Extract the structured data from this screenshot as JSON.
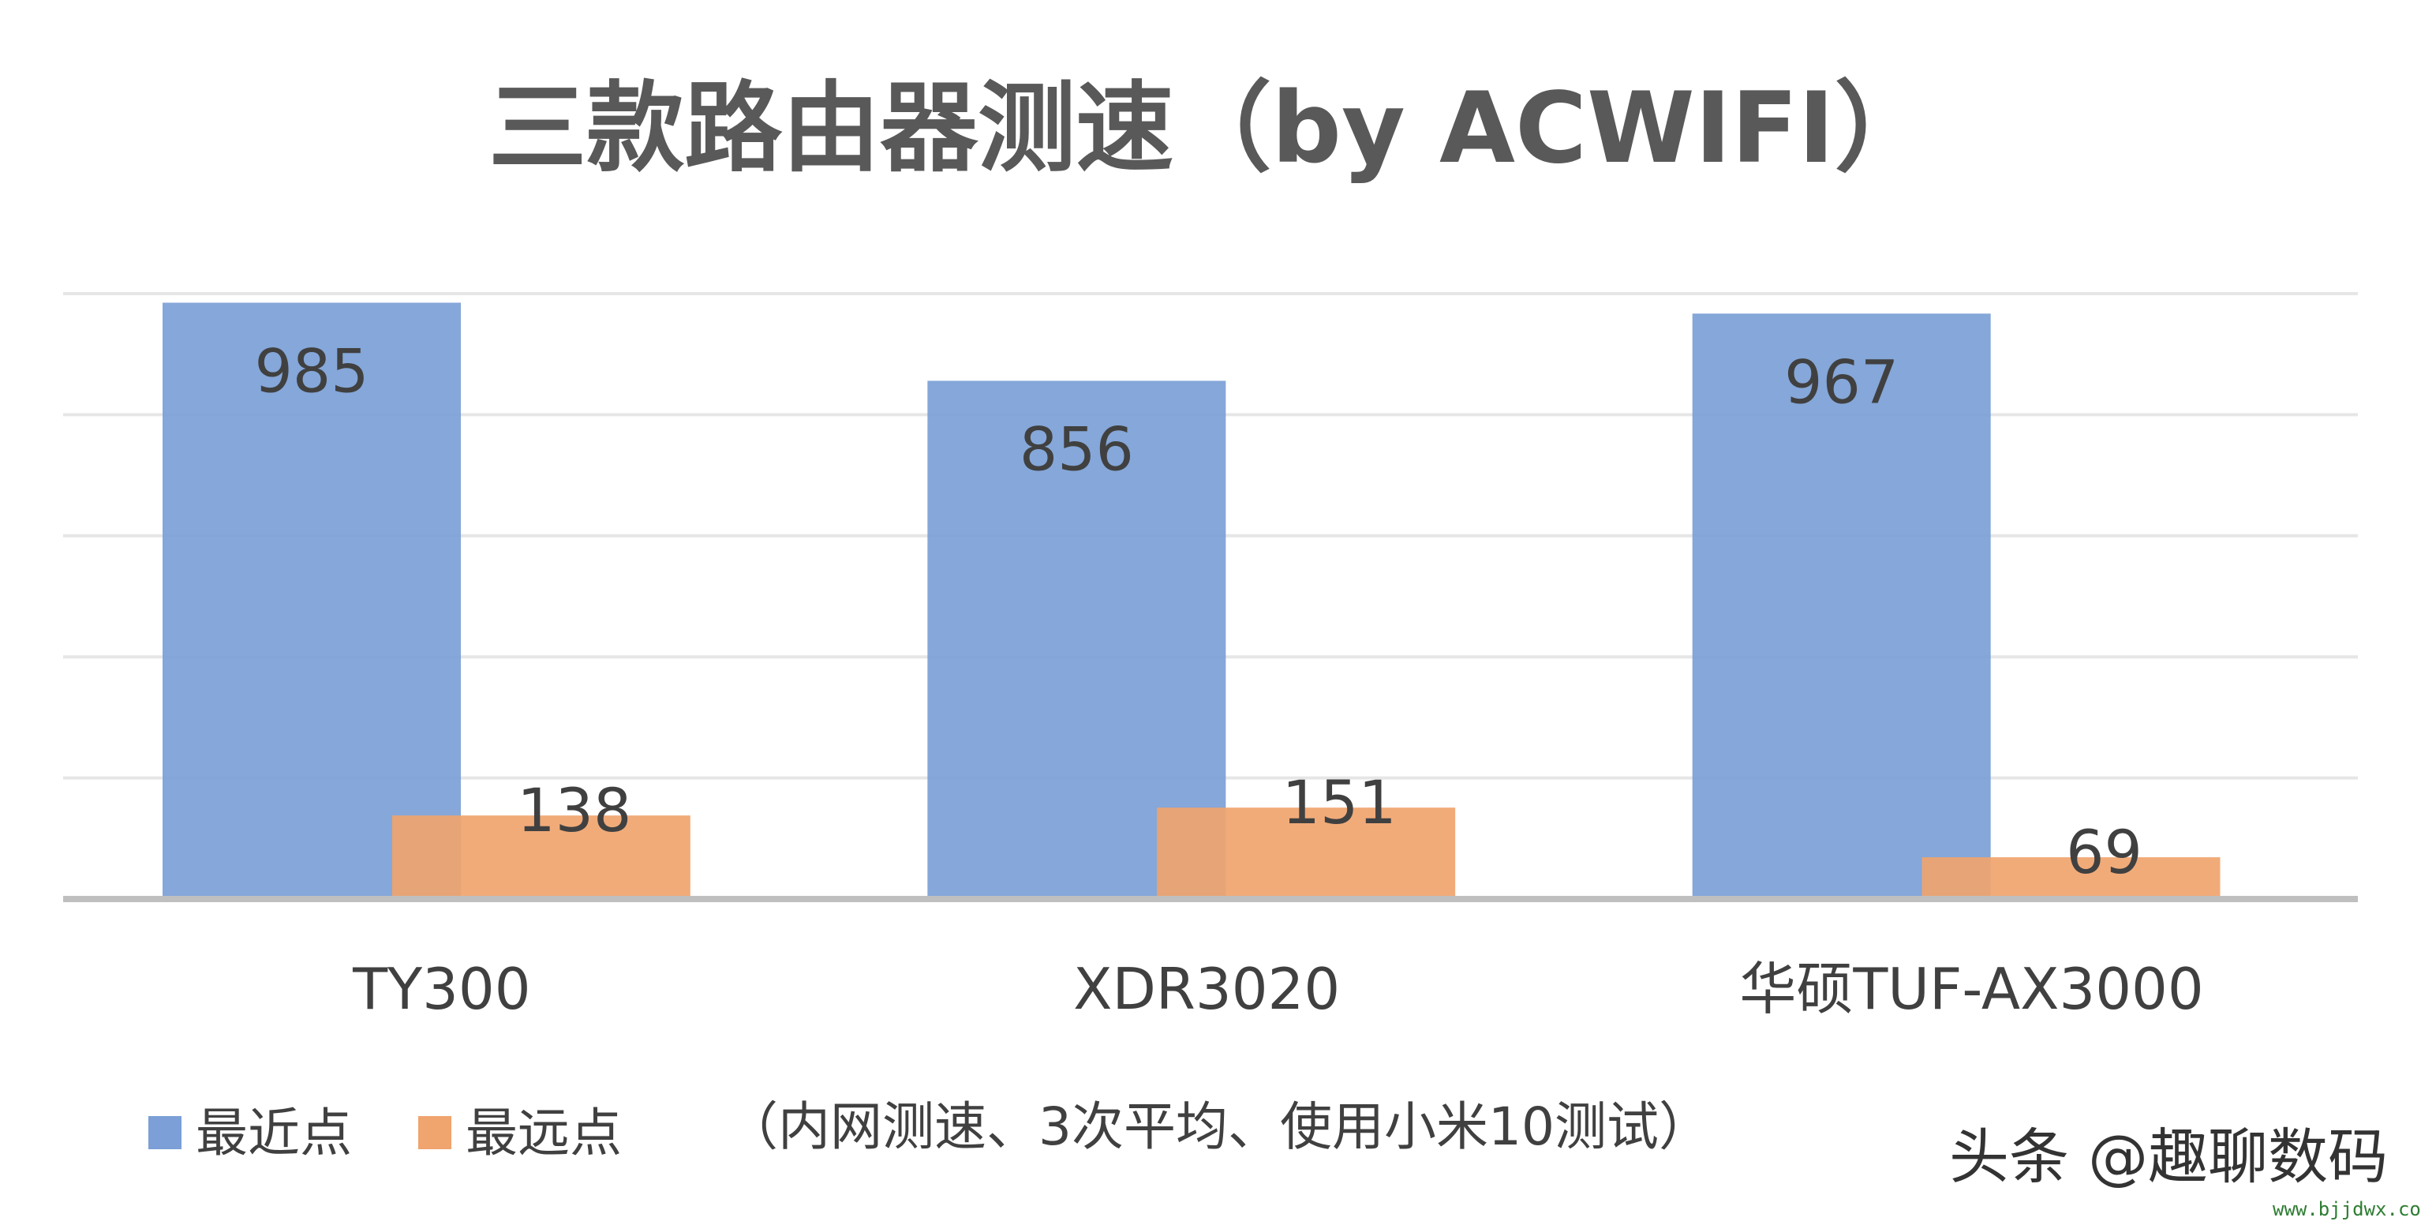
{
  "chart_data": {
    "type": "bar",
    "title": "三款路由器测速（by ACWIFI）",
    "categories": [
      "TY300",
      "XDR3020",
      "华硕TUF-AX3000"
    ],
    "series": [
      {
        "name": "最近点",
        "values": [
          985,
          856,
          967
        ],
        "color": "#7b9fd6"
      },
      {
        "name": "最远点",
        "values": [
          138,
          151,
          69
        ],
        "color": "#f0a46e"
      }
    ],
    "data_labels": [
      "985",
      "856",
      "967",
      "138",
      "151",
      "69"
    ],
    "ylim": [
      0,
      1000
    ],
    "grid": true,
    "legend_position": "bottom-left",
    "note": "（内网测速、3次平均、使用小米10测试）"
  },
  "watermark": {
    "text": "头条 @趣聊数码",
    "site": "www.bjjdwx.com"
  }
}
